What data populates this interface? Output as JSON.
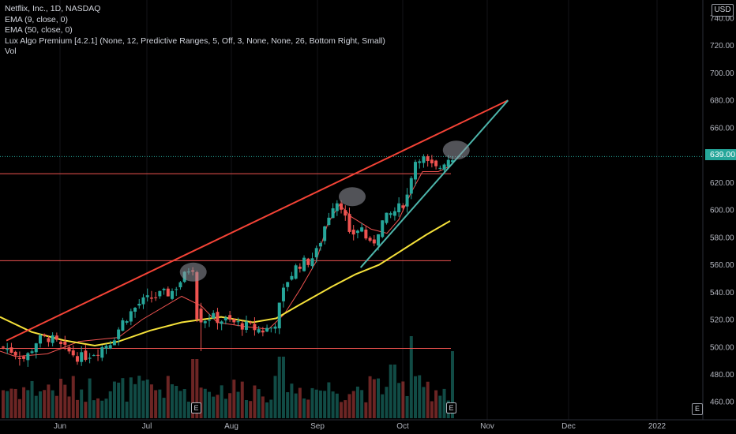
{
  "legend": {
    "symbol": "Netflix, Inc., 1D, NASDAQ",
    "ema9": "EMA (9, close, 0)",
    "ema50": "EMA (50, close, 0)",
    "lux": "Lux Algo Premium [4.2.1] (None, 12, Predictive Ranges, 5, Off, 3, None, None, 26, Bottom Right, Small)",
    "vol": "Vol"
  },
  "currency_label": "USD",
  "last_price_label": "639.00",
  "earnings_badge": "E",
  "settings_badge": "E",
  "colors": {
    "up": "#26a69a",
    "down": "#ef5350",
    "ema9": "#ef5350",
    "ema50": "#f5e13a",
    "resistance": "#ef5350",
    "trend_upper": "#f44336",
    "trend_lower": "#4db6ac",
    "last_price": "#26a69a"
  },
  "chart_data": {
    "type": "candlestick",
    "title": "Netflix, Inc., 1D, NASDAQ",
    "x_labels": [
      "Jun",
      "Jul",
      "Aug",
      "Sep",
      "Oct",
      "Nov",
      "Dec",
      "2022"
    ],
    "y_ticks": [
      "740.00",
      "720.00",
      "700.00",
      "680.00",
      "660.00",
      "640.00",
      "620.00",
      "600.00",
      "580.00",
      "560.00",
      "540.00",
      "520.00",
      "500.00",
      "480.00",
      "460.00"
    ],
    "y_range": [
      455,
      745
    ],
    "last_price": 639.0,
    "resistance_levels": [
      626.5,
      563,
      499
    ],
    "upper_trendline": {
      "start": {
        "date": "2021-05-20",
        "price": 507
      },
      "end": {
        "date": "2021-11-03",
        "price": 680
      }
    },
    "lower_trendline": {
      "start": {
        "date": "2021-09-13",
        "price": 558
      },
      "end": {
        "date": "2021-11-03",
        "price": 680
      }
    },
    "pivot_highs": [
      {
        "date": "2021-07-16",
        "price": 557
      },
      {
        "date": "2021-09-09",
        "price": 612
      },
      {
        "date": "2021-10-15",
        "price": 646
      }
    ],
    "earnings_dates": [
      "2021-07-20",
      "2021-10-19"
    ],
    "series": [
      {
        "name": "EMA (9, close, 0)",
        "points": [
          [
            0,
            497
          ],
          [
            20,
            493
          ],
          [
            60,
            495
          ],
          [
            100,
            504
          ],
          [
            150,
            507
          ],
          [
            180,
            520
          ],
          [
            230,
            537
          ],
          [
            255,
            530
          ],
          [
            275,
            518
          ],
          [
            310,
            515
          ],
          [
            340,
            513
          ],
          [
            360,
            524
          ],
          [
            380,
            542
          ],
          [
            400,
            562
          ],
          [
            415,
            590
          ],
          [
            430,
            604
          ],
          [
            445,
            595
          ],
          [
            470,
            586
          ],
          [
            490,
            583
          ],
          [
            505,
            593
          ],
          [
            520,
            612
          ],
          [
            535,
            628
          ],
          [
            555,
            628
          ],
          [
            570,
            632
          ]
        ]
      },
      {
        "name": "EMA (50, close, 0)",
        "points": [
          [
            0,
            522
          ],
          [
            40,
            511
          ],
          [
            80,
            505
          ],
          [
            120,
            501
          ],
          [
            150,
            504
          ],
          [
            190,
            512
          ],
          [
            230,
            518
          ],
          [
            280,
            522
          ],
          [
            320,
            518
          ],
          [
            350,
            521
          ],
          [
            380,
            531
          ],
          [
            420,
            544
          ],
          [
            450,
            553
          ],
          [
            480,
            560
          ],
          [
            510,
            571
          ],
          [
            540,
            582
          ],
          [
            570,
            592
          ]
        ]
      }
    ]
  }
}
